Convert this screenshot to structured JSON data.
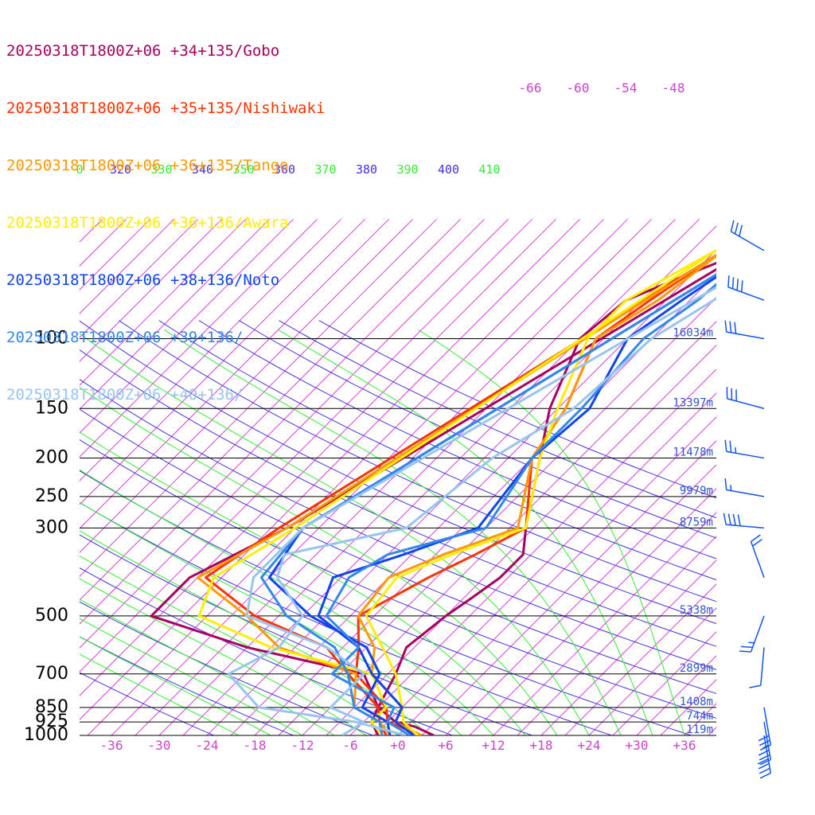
{
  "legend": [
    {
      "label": "20250318T1800Z+06 +34+135/Gobo",
      "color": "#a8005f"
    },
    {
      "label": "20250318T1800Z+06 +35+135/Nishiwaki",
      "color": "#ff3300"
    },
    {
      "label": "20250318T1800Z+06 +36+135/Tango",
      "color": "#ff9900"
    },
    {
      "label": "20250318T1800Z+06 +36+136/Awara",
      "color": "#ffee00"
    },
    {
      "label": "20250318T1800Z+06 +38+136/Noto",
      "color": "#1144ee"
    },
    {
      "label": "20250318T1800Z+06 +39+136/",
      "color": "#3388ee"
    },
    {
      "label": "20250318T1800Z+06 +40+136/",
      "color": "#99c4f0"
    }
  ],
  "colors": {
    "isobar": "#000000",
    "isotherm": "#dd44dd",
    "dry_adiabat": "#4433dd",
    "moist_adiabat": "#33ee33",
    "height_label": "#3355cc",
    "temp_label": "#cc44cc",
    "wind_barb": "#1155ee"
  },
  "chart_data": {
    "type": "skew-t",
    "pressure_levels": [
      {
        "p": 100,
        "label": "100",
        "height": "16034m"
      },
      {
        "p": 150,
        "label": "150",
        "height": "13397m"
      },
      {
        "p": 200,
        "label": "200",
        "height": "11478m"
      },
      {
        "p": 250,
        "label": "250",
        "height": "9979m"
      },
      {
        "p": 300,
        "label": "300",
        "height": "8759m"
      },
      {
        "p": 500,
        "label": "500",
        "height": "5338m"
      },
      {
        "p": 700,
        "label": "700",
        "height": "2899m"
      },
      {
        "p": 850,
        "label": "850",
        "height": "1408m"
      },
      {
        "p": 925,
        "label": "925",
        "height": "744m"
      },
      {
        "p": 1000,
        "label": "1000",
        "height": "119m"
      }
    ],
    "temperature_ticks": [
      "-36",
      "-30",
      "-24",
      "-18",
      "-12",
      "-6",
      "+0",
      "+6",
      "+12",
      "+18",
      "+24",
      "+30",
      "+36"
    ],
    "upper_temperature_ticks": [
      "-66",
      "-60",
      "-54",
      "-48"
    ],
    "theta_labels": [
      {
        "value": "0",
        "kind": "moist"
      },
      {
        "value": "320",
        "kind": "dry"
      },
      {
        "value": "330",
        "kind": "moist"
      },
      {
        "value": "340",
        "kind": "dry"
      },
      {
        "value": "350",
        "kind": "moist"
      },
      {
        "value": "360",
        "kind": "dry"
      },
      {
        "value": "370",
        "kind": "moist"
      },
      {
        "value": "380",
        "kind": "dry"
      },
      {
        "value": "390",
        "kind": "moist"
      },
      {
        "value": "400",
        "kind": "dry"
      },
      {
        "value": "410",
        "kind": "moist"
      }
    ],
    "x_range_bottom": [
      -40,
      40
    ],
    "p_range": [
      100,
      1000
    ],
    "series": [
      {
        "name": "20250318T1800Z+06 +34+135/Gobo",
        "points": [
          [
            1000,
            4.5
          ],
          [
            950,
            1
          ],
          [
            925,
            -2
          ],
          [
            850,
            -6
          ],
          [
            700,
            -8
          ],
          [
            600,
            -10
          ],
          [
            500,
            -9
          ],
          [
            450,
            -8
          ],
          [
            400,
            -7
          ],
          [
            350,
            -7
          ],
          [
            300,
            -10
          ],
          [
            200,
            -17
          ],
          [
            150,
            -22
          ],
          [
            100,
            -27
          ],
          [
            80,
            -26
          ],
          [
            70,
            -22
          ],
          [
            60,
            -17
          ],
          [
            300,
            -40
          ],
          [
            400,
            -46
          ],
          [
            500,
            -46
          ],
          [
            600,
            -30
          ],
          [
            700,
            -12
          ],
          [
            850,
            -6
          ],
          [
            925,
            -5
          ],
          [
            1000,
            -2.5
          ]
        ]
      },
      {
        "name": "20250318T1800Z+06 +35+135/Nishiwaki",
        "points": [
          [
            1000,
            3
          ],
          [
            925,
            -3
          ],
          [
            850,
            -5
          ],
          [
            700,
            -13
          ],
          [
            600,
            -16
          ],
          [
            500,
            -20
          ],
          [
            400,
            -16
          ],
          [
            350,
            -13
          ],
          [
            300,
            -10
          ],
          [
            200,
            -18
          ],
          [
            150,
            -20
          ],
          [
            100,
            -25
          ],
          [
            80,
            -23
          ],
          [
            60,
            -20
          ],
          [
            300,
            -41
          ],
          [
            400,
            -44
          ],
          [
            500,
            -33
          ],
          [
            600,
            -20
          ],
          [
            700,
            -14
          ],
          [
            850,
            -6
          ],
          [
            925,
            -4
          ],
          [
            1000,
            -1.5
          ]
        ]
      },
      {
        "name": "20250318T1800Z+06 +36+135/Tango",
        "points": [
          [
            1000,
            3
          ],
          [
            925,
            -2
          ],
          [
            850,
            -3
          ],
          [
            700,
            -11
          ],
          [
            600,
            -14
          ],
          [
            500,
            -20
          ],
          [
            400,
            -21
          ],
          [
            350,
            -17
          ],
          [
            300,
            -11
          ],
          [
            200,
            -18
          ],
          [
            150,
            -20
          ],
          [
            100,
            -25
          ],
          [
            80,
            -22
          ],
          [
            60,
            -20
          ],
          [
            300,
            -40
          ],
          [
            400,
            -45
          ],
          [
            500,
            -34
          ],
          [
            600,
            -26
          ],
          [
            700,
            -13
          ],
          [
            850,
            -9
          ],
          [
            925,
            -4
          ],
          [
            1000,
            -1
          ]
        ]
      },
      {
        "name": "20250318T1800Z+06 +36+136/Awara",
        "points": [
          [
            1000,
            2.5
          ],
          [
            925,
            -1
          ],
          [
            850,
            -3
          ],
          [
            700,
            -8
          ],
          [
            600,
            -13
          ],
          [
            500,
            -19
          ],
          [
            400,
            -20
          ],
          [
            350,
            -16
          ],
          [
            300,
            -10
          ],
          [
            200,
            -17
          ],
          [
            150,
            -21
          ],
          [
            100,
            -26
          ],
          [
            80,
            -26
          ],
          [
            60,
            -21
          ],
          [
            300,
            -39
          ],
          [
            400,
            -43
          ],
          [
            500,
            -40
          ],
          [
            600,
            -27
          ],
          [
            700,
            -11
          ],
          [
            850,
            -5
          ],
          [
            925,
            -5
          ],
          [
            1000,
            -2
          ]
        ]
      },
      {
        "name": "20250318T1800Z+06 +38+136/Noto",
        "points": [
          [
            1000,
            2
          ],
          [
            925,
            -2
          ],
          [
            850,
            -3
          ],
          [
            700,
            -11
          ],
          [
            600,
            -16
          ],
          [
            500,
            -25
          ],
          [
            400,
            -28
          ],
          [
            350,
            -22
          ],
          [
            300,
            -16
          ],
          [
            200,
            -18
          ],
          [
            150,
            -17
          ],
          [
            100,
            -21
          ],
          [
            80,
            -19
          ],
          [
            60,
            -16
          ],
          [
            300,
            -38
          ],
          [
            400,
            -36
          ],
          [
            500,
            -26
          ],
          [
            600,
            -15
          ],
          [
            700,
            -10
          ],
          [
            850,
            -8
          ],
          [
            925,
            -3
          ],
          [
            1000,
            -1
          ]
        ]
      },
      {
        "name": "20250318T1800Z+06 +39+136/",
        "points": [
          [
            1000,
            1.5
          ],
          [
            925,
            -3
          ],
          [
            850,
            -4
          ],
          [
            700,
            -16
          ],
          [
            600,
            -16
          ],
          [
            500,
            -24
          ],
          [
            400,
            -26
          ],
          [
            350,
            -24
          ],
          [
            300,
            -15
          ],
          [
            200,
            -18
          ],
          [
            150,
            -18
          ],
          [
            100,
            -19
          ],
          [
            80,
            -17
          ],
          [
            60,
            -16
          ],
          [
            300,
            -38
          ],
          [
            400,
            -37
          ],
          [
            500,
            -29
          ],
          [
            600,
            -19
          ],
          [
            700,
            -14
          ],
          [
            850,
            -9
          ],
          [
            925,
            -4
          ],
          [
            1000,
            -2
          ]
        ]
      },
      {
        "name": "20250318T1800Z+06 +40+136/",
        "points": [
          [
            1000,
            1
          ],
          [
            925,
            -7
          ],
          [
            850,
            -21
          ],
          [
            700,
            -29
          ],
          [
            600,
            -26
          ],
          [
            500,
            -27
          ],
          [
            400,
            -35
          ],
          [
            350,
            -37
          ],
          [
            300,
            -25
          ],
          [
            200,
            -23
          ],
          [
            150,
            -19
          ],
          [
            100,
            -18
          ],
          [
            80,
            -15
          ],
          [
            60,
            -13
          ],
          [
            300,
            -38
          ],
          [
            400,
            -38
          ],
          [
            500,
            -34
          ],
          [
            600,
            -20
          ],
          [
            700,
            -12
          ],
          [
            850,
            -12
          ],
          [
            925,
            -6
          ],
          [
            1000,
            -7
          ]
        ]
      }
    ],
    "wind_barbs": [
      {
        "p": 60,
        "speed_kt": 30,
        "dir": 300
      },
      {
        "p": 80,
        "speed_kt": 40,
        "dir": 290
      },
      {
        "p": 100,
        "speed_kt": 30,
        "dir": 280
      },
      {
        "p": 150,
        "speed_kt": 30,
        "dir": 285
      },
      {
        "p": 200,
        "speed_kt": 25,
        "dir": 280
      },
      {
        "p": 250,
        "speed_kt": 15,
        "dir": 280
      },
      {
        "p": 300,
        "speed_kt": 40,
        "dir": 275
      },
      {
        "p": 400,
        "speed_kt": 20,
        "dir": 340
      },
      {
        "p": 500,
        "speed_kt": 25,
        "dir": 200
      },
      {
        "p": 600,
        "speed_kt": 10,
        "dir": 185
      },
      {
        "p": 850,
        "speed_kt": 30,
        "dir": 170
      },
      {
        "p": 925,
        "speed_kt": 35,
        "dir": 170
      },
      {
        "p": 1000,
        "speed_kt": 40,
        "dir": 170
      }
    ]
  }
}
